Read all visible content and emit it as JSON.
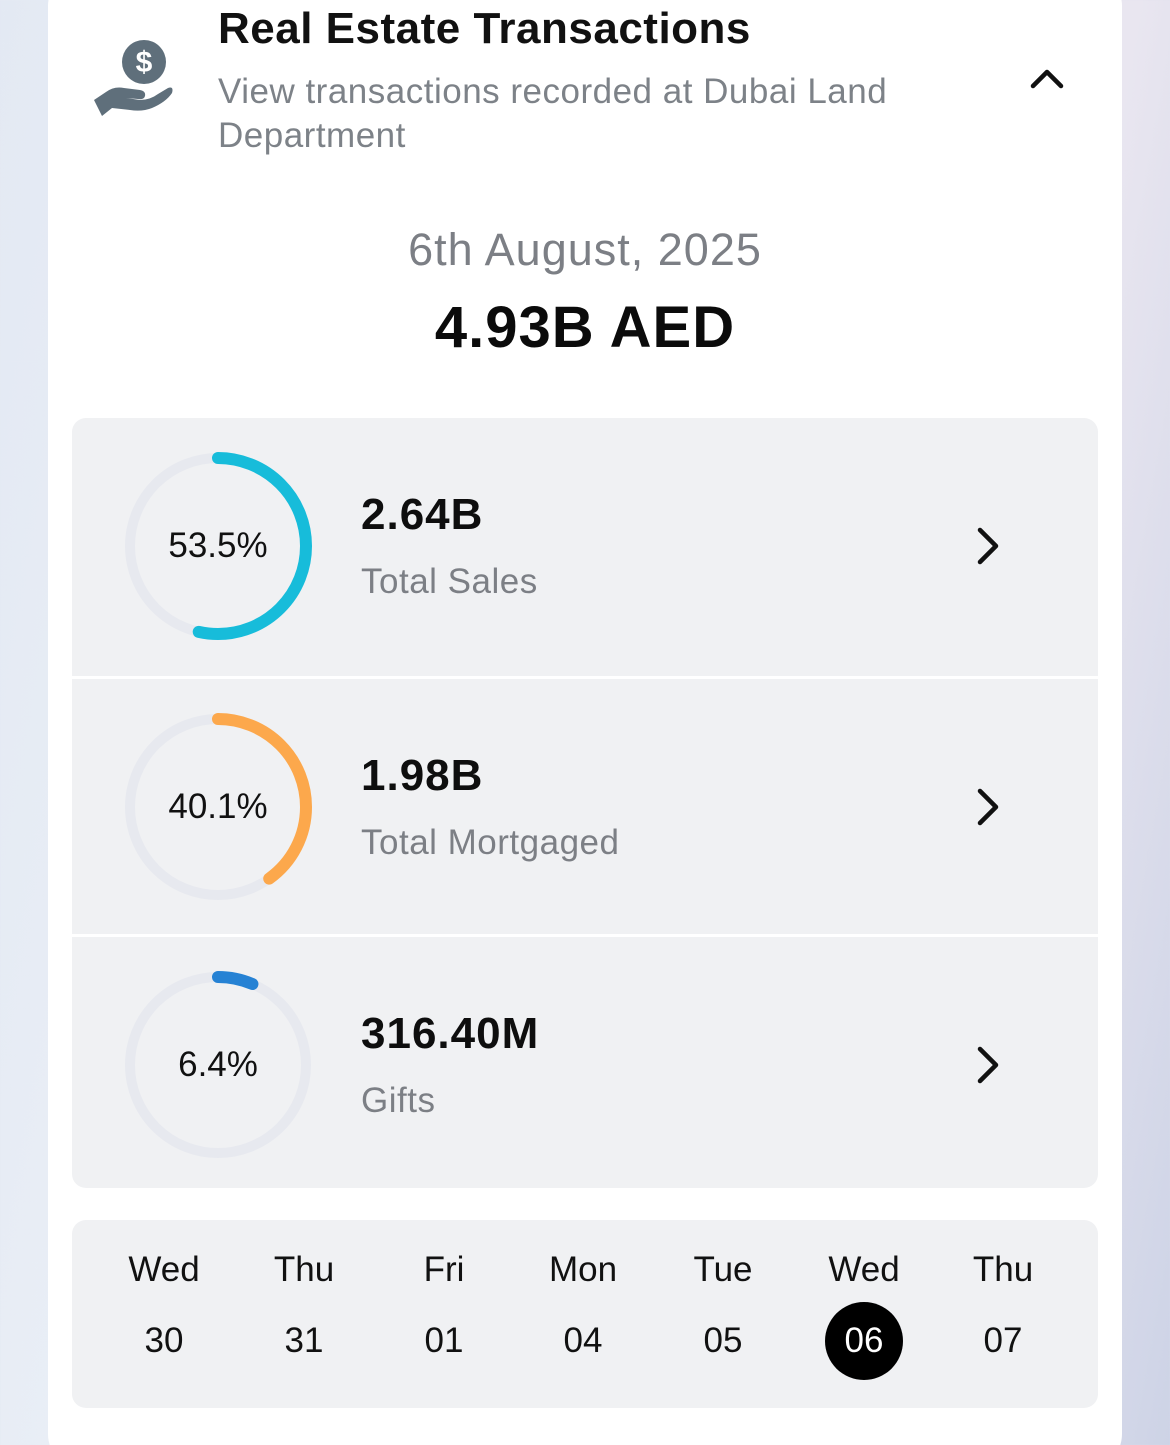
{
  "header": {
    "icon": "hand-money-icon",
    "title": "Real Estate Transactions",
    "subtitle": "View transactions recorded at Dubai Land Department",
    "collapse_icon": "chevron-up-icon"
  },
  "summary": {
    "date": "6th August, 2025",
    "total": "4.93B AED"
  },
  "breakdown": [
    {
      "percent": 53.5,
      "percent_label": "53.5%",
      "value": "2.64B",
      "label": "Total Sales",
      "color": "#17bcda"
    },
    {
      "percent": 40.1,
      "percent_label": "40.1%",
      "value": "1.98B",
      "label": "Total Mortgaged",
      "color": "#fca84c"
    },
    {
      "percent": 6.4,
      "percent_label": "6.4%",
      "value": "316.40M",
      "label": "Gifts",
      "color": "#2682d4"
    }
  ],
  "ring_track_color": "#e7e9ef",
  "date_strip": {
    "days": [
      {
        "name": "Wed",
        "num": "30",
        "selected": false
      },
      {
        "name": "Thu",
        "num": "31",
        "selected": false
      },
      {
        "name": "Fri",
        "num": "01",
        "selected": false
      },
      {
        "name": "Mon",
        "num": "04",
        "selected": false
      },
      {
        "name": "Tue",
        "num": "05",
        "selected": false
      },
      {
        "name": "Wed",
        "num": "06",
        "selected": true
      },
      {
        "name": "Thu",
        "num": "07",
        "selected": false
      }
    ]
  }
}
